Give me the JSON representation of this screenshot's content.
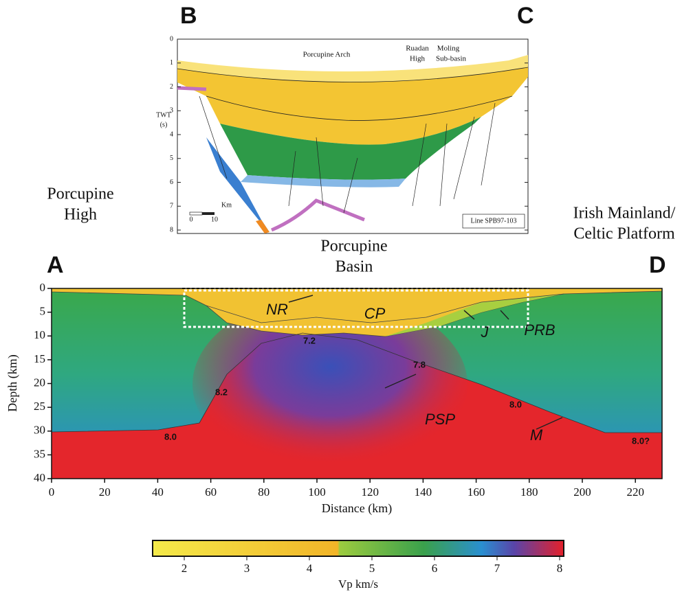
{
  "top_section": {
    "left_label": "B",
    "right_label": "C",
    "y_axis_label": [
      "TWT",
      "(s)"
    ],
    "yticks": [
      0,
      1,
      2,
      3,
      4,
      5,
      6,
      7,
      8
    ],
    "annotations": {
      "porcupine_arch": "Porcupine Arch",
      "ruadan_high": [
        "Ruadan",
        "High"
      ],
      "moling_sub_basin": [
        "Moling",
        "Sub-basin"
      ]
    },
    "scale_bar": {
      "unit": "Km",
      "ticks": [
        0,
        10
      ]
    },
    "line_id": "Line SPB97-103"
  },
  "region_labels": {
    "porcupine_high": [
      "Porcupine",
      "High"
    ],
    "porcupine_basin": [
      "Porcupine",
      "Basin"
    ],
    "irish_mainland": [
      "Irish Mainland/",
      "Celtic Platform"
    ]
  },
  "velocity_model": {
    "left_label": "A",
    "right_label": "D",
    "x_axis_label": "Distance (km)",
    "y_axis_label": "Depth (km)",
    "xticks": [
      0,
      20,
      40,
      60,
      80,
      100,
      120,
      140,
      160,
      180,
      200,
      220
    ],
    "yticks": [
      0,
      5,
      10,
      15,
      20,
      25,
      30,
      35,
      40
    ],
    "units": [
      "NR",
      "CP",
      "J",
      "PRB",
      "PSP",
      "M"
    ],
    "velocity_labels": [
      "7.2",
      "7.8",
      "8.2",
      "8.0",
      "8.0",
      "8.0?"
    ]
  },
  "colorbar": {
    "ticks": [
      2,
      3,
      4,
      5,
      6,
      7,
      8
    ],
    "label": "Vp km/s"
  }
}
